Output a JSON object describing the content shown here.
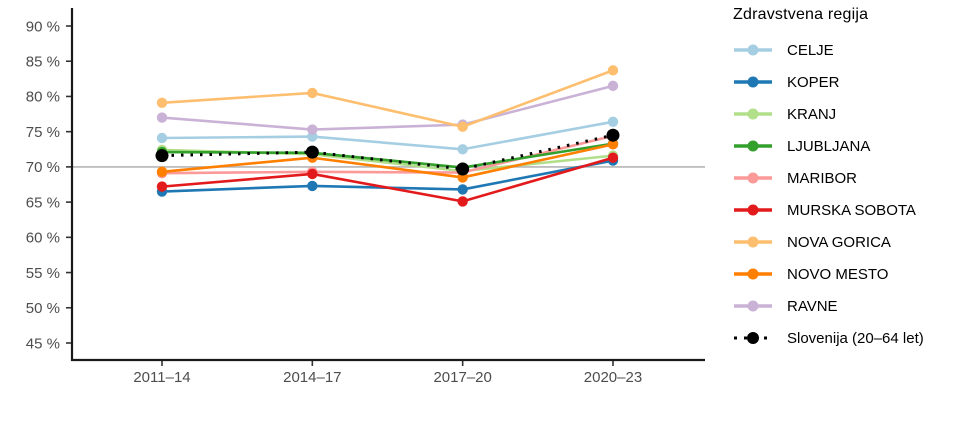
{
  "chart_data": {
    "type": "line",
    "title": "",
    "xlabel": "",
    "ylabel": "",
    "legend_title": "Zdravstvena regija",
    "legend_position": "right",
    "grid": false,
    "categories": [
      "2011–14",
      "2014–17",
      "2017–20",
      "2020–23"
    ],
    "y_axis": {
      "min": 45,
      "max": 90,
      "step": 5,
      "suffix": " %"
    },
    "reference_line": {
      "value": 70,
      "color": "#b5b5b5"
    },
    "series": [
      {
        "name": "CELJE",
        "color": "#a6cee3",
        "line_style": "solid",
        "values": [
          74.1,
          74.3,
          72.5,
          76.4
        ]
      },
      {
        "name": "KOPER",
        "color": "#1f78b4",
        "line_style": "solid",
        "values": [
          66.5,
          67.3,
          66.8,
          70.9
        ]
      },
      {
        "name": "KRANJ",
        "color": "#b2df8a",
        "line_style": "solid",
        "values": [
          72.4,
          71.8,
          69.4,
          71.6
        ]
      },
      {
        "name": "LJUBLJANA",
        "color": "#33a02c",
        "line_style": "solid",
        "values": [
          72.1,
          72.0,
          69.9,
          73.3
        ]
      },
      {
        "name": "MARIBOR",
        "color": "#fb9a99",
        "line_style": "solid",
        "values": [
          69.1,
          69.3,
          69.2,
          74.4
        ]
      },
      {
        "name": "MURSKA SOBOTA",
        "color": "#e31a1c",
        "line_style": "solid",
        "values": [
          67.2,
          69.0,
          65.1,
          71.3
        ]
      },
      {
        "name": "NOVA GORICA",
        "color": "#fdbf6f",
        "line_style": "solid",
        "values": [
          79.1,
          80.5,
          75.7,
          83.7
        ]
      },
      {
        "name": "NOVO MESTO",
        "color": "#ff7f00",
        "line_style": "solid",
        "values": [
          69.3,
          71.3,
          68.5,
          73.2
        ]
      },
      {
        "name": "RAVNE",
        "color": "#cab2d6",
        "line_style": "solid",
        "values": [
          77.0,
          75.3,
          76.0,
          81.5
        ]
      },
      {
        "name": "Slovenija (20–64 let)",
        "color": "#000000",
        "line_style": "dotted",
        "values": [
          71.6,
          72.1,
          69.7,
          74.5
        ]
      }
    ]
  },
  "style_colors": {
    "axis_line": "#1a1a1a",
    "tick_mark": "#333333",
    "tick_label": "#4d4d4d"
  }
}
